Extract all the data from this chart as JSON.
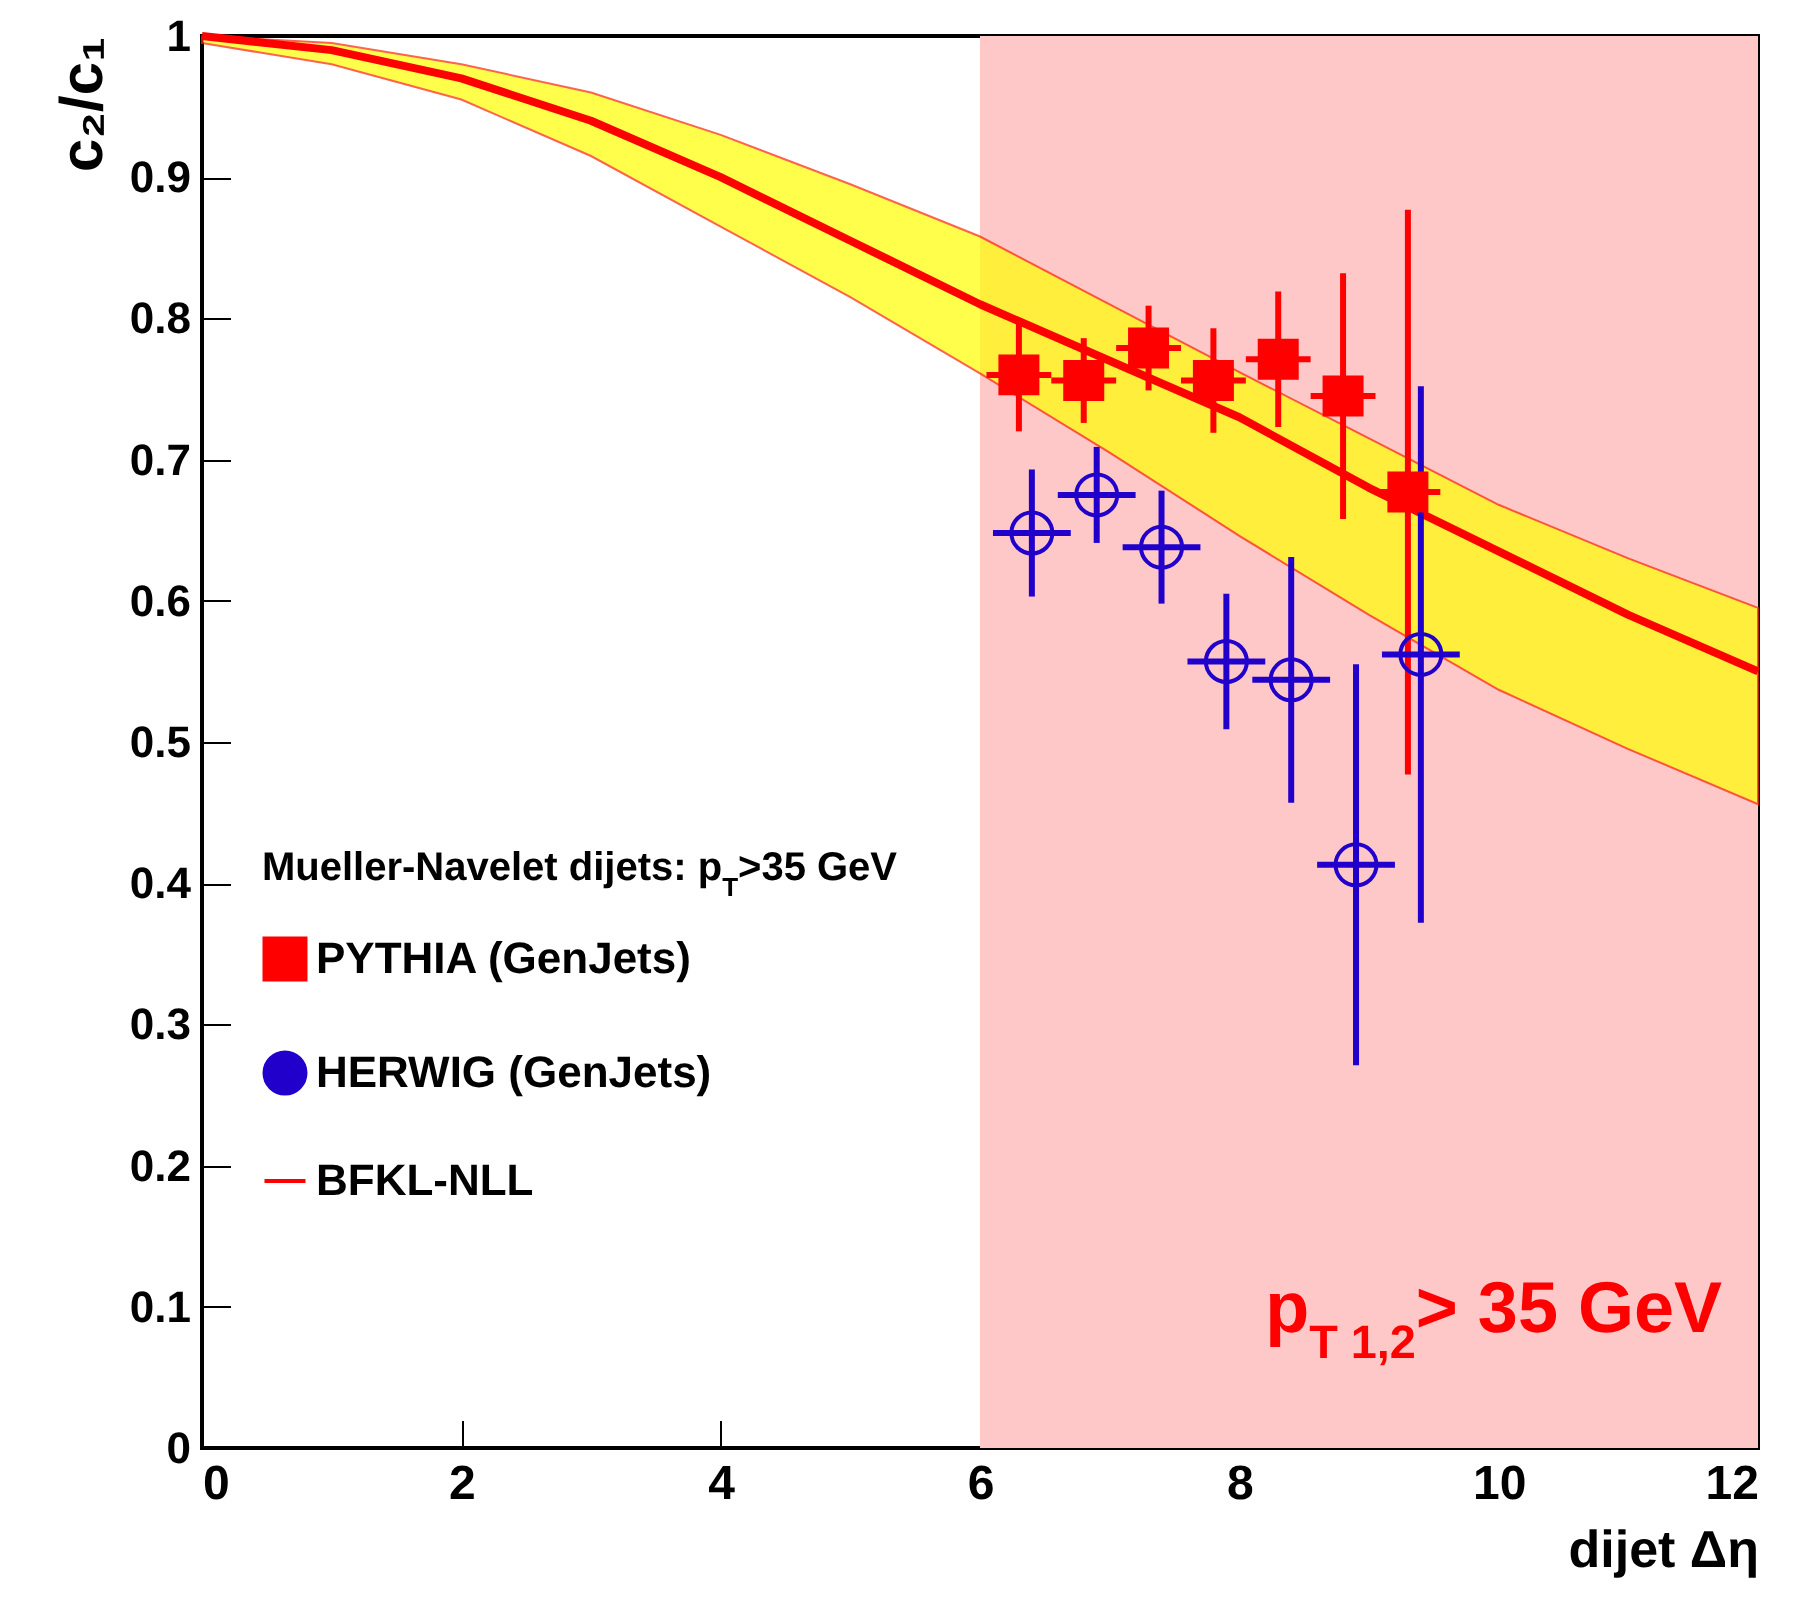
{
  "chart_data": {
    "type": "scatter",
    "xlabel": "dijet Δη",
    "ylabel": "c₂/c₁",
    "legend_title": "Mueller-Navelet dijets: p$_{T}$>35 GeV",
    "legend": "bottom left",
    "grid": false,
    "xlim": [
      0,
      12
    ],
    "ylim": [
      0,
      1
    ],
    "xticks": [
      0,
      2,
      4,
      6,
      8,
      10,
      12
    ],
    "yticks": [
      0,
      0.1,
      0.2,
      0.3,
      0.4,
      0.5,
      0.6,
      0.7,
      0.8,
      0.9,
      1
    ],
    "bands": [
      {
        "axis": "x",
        "from": 6,
        "to": 12,
        "label": "p$_{T 1,2}$> 35 GeV",
        "color": "#ffc8c8"
      }
    ],
    "series": [
      {
        "name": "PYTHIA (GenJets)",
        "marker": "square",
        "color": "#ff0000",
        "x": [
          6.3,
          6.8,
          7.3,
          7.8,
          8.3,
          8.8,
          9.3
        ],
        "values": [
          0.76,
          0.756,
          0.779,
          0.756,
          0.771,
          0.745,
          0.677
        ],
        "errors": [
          0.04,
          0.03,
          0.03,
          0.037,
          0.048,
          0.087,
          0.2
        ],
        "xerrors": [
          0.25,
          0.25,
          0.25,
          0.25,
          0.25,
          0.25,
          0.25
        ]
      },
      {
        "name": "HERWIG (GenJets)",
        "marker": "circle",
        "color": "#2200cc",
        "x": [
          6.4,
          6.9,
          7.4,
          7.9,
          8.4,
          8.9,
          9.4
        ],
        "values": [
          0.648,
          0.675,
          0.638,
          0.557,
          0.544,
          0.413,
          0.562
        ],
        "errors": [
          0.045,
          0.034,
          0.04,
          0.048,
          0.087,
          0.142,
          0.19
        ],
        "xerrors": [
          0.3,
          0.3,
          0.3,
          0.3,
          0.3,
          0.3,
          0.3
        ]
      },
      {
        "name": "BFKL-NLL",
        "type": "line",
        "marker": "none",
        "color": "#ff0000",
        "x": [
          0,
          1,
          2,
          3,
          4,
          5,
          6,
          7,
          8,
          9,
          10,
          11,
          12
        ],
        "values": [
          1.0,
          0.99,
          0.97,
          0.94,
          0.9,
          0.855,
          0.81,
          0.77,
          0.73,
          0.68,
          0.635,
          0.59,
          0.55
        ],
        "lower": [
          0.995,
          0.98,
          0.955,
          0.915,
          0.865,
          0.815,
          0.761,
          0.705,
          0.646,
          0.59,
          0.537,
          0.495,
          0.456
        ],
        "upper": [
          1.0,
          0.995,
          0.98,
          0.96,
          0.93,
          0.895,
          0.858,
          0.81,
          0.762,
          0.715,
          0.668,
          0.63,
          0.595
        ]
      }
    ]
  }
}
